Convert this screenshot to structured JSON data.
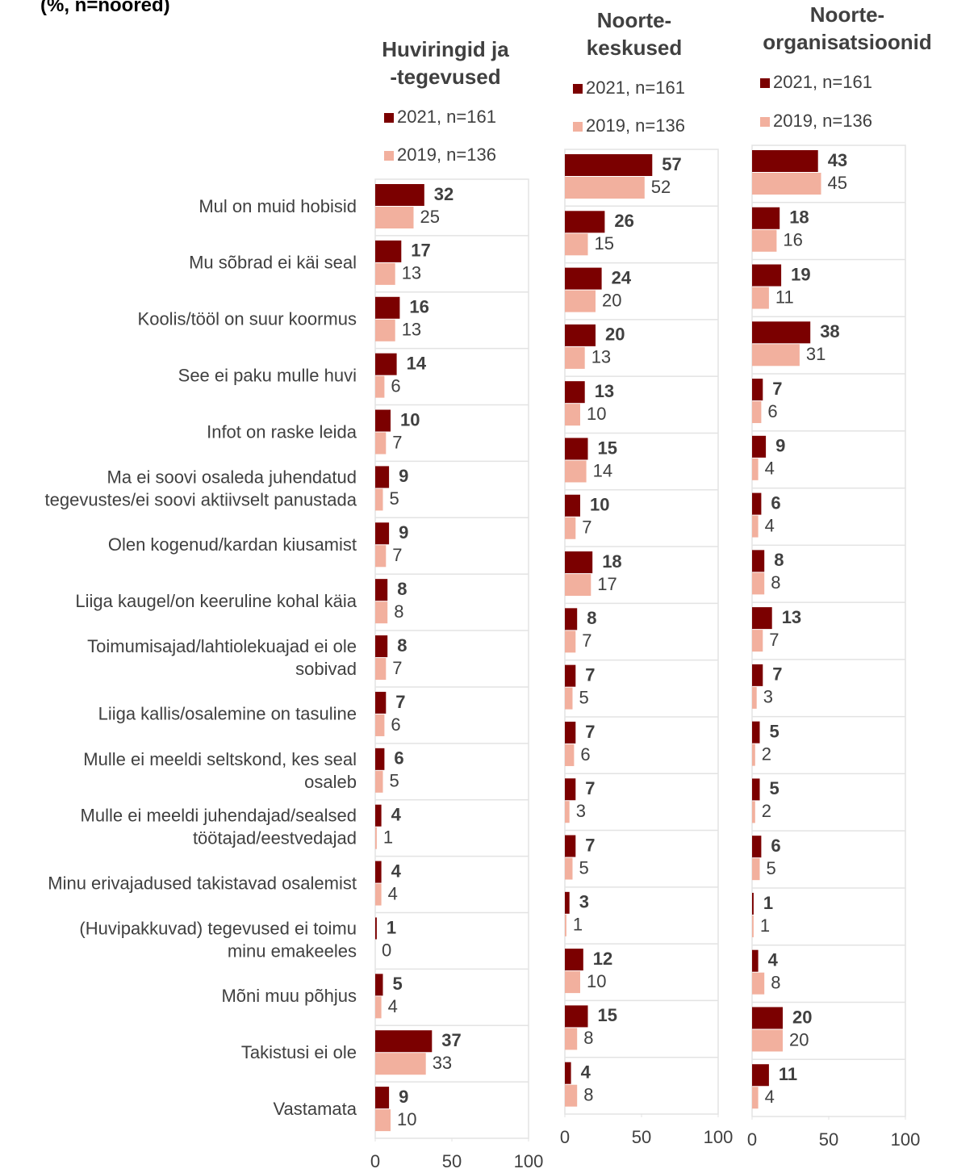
{
  "title": "(%, n=noored)",
  "chart_data": [
    {
      "type": "bar",
      "orientation": "horizontal",
      "title": "Huviringid ja\n-tegevused",
      "categories": [
        "Mul on muid hobisid",
        "Mu sõbrad ei käi seal",
        "Koolis/tööl on suur koormus",
        "See ei paku mulle huvi",
        "Infot on raske leida",
        "Ma ei soovi osaleda juhendatud\ntegevustes/ei soovi aktiivselt panustada",
        "Olen kogenud/kardan kiusamist",
        "Liiga kaugel/on keeruline kohal käia",
        "Toimumisajad/lahtiolekuajad ei ole\nsobivad",
        "Liiga kallis/osalemine on tasuline",
        "Mulle ei meeldi seltskond, kes seal\nosaleb",
        "Mulle ei meeldi juhendajad/sealsed\ntöötajad/eestvedajad",
        "Minu erivajadused takistavad osalemist",
        "(Huvipakkuvad) tegevused ei toimu\nminu emakeeles",
        "Mõni muu põhjus",
        "Takistusi ei ole",
        "Vastamata"
      ],
      "series": [
        {
          "name": "2021, n=161",
          "color": "#7b0000",
          "values": [
            32,
            17,
            16,
            14,
            10,
            9,
            9,
            8,
            8,
            7,
            6,
            4,
            4,
            1,
            5,
            37,
            9
          ]
        },
        {
          "name": "2019, n=136",
          "color": "#f2b09e",
          "values": [
            25,
            13,
            13,
            6,
            7,
            5,
            7,
            8,
            7,
            6,
            5,
            1,
            4,
            0,
            4,
            33,
            10
          ]
        }
      ],
      "xlim": [
        0,
        100
      ],
      "xticks": [
        0,
        50,
        100
      ]
    },
    {
      "type": "bar",
      "orientation": "horizontal",
      "title": "Noorte-\nkeskused",
      "series": [
        {
          "name": "2021, n=161",
          "color": "#7b0000",
          "values": [
            57,
            26,
            24,
            20,
            13,
            15,
            10,
            18,
            8,
            7,
            7,
            7,
            7,
            3,
            12,
            15,
            4
          ]
        },
        {
          "name": "2019, n=136",
          "color": "#f2b09e",
          "values": [
            52,
            15,
            20,
            13,
            10,
            14,
            7,
            17,
            7,
            5,
            6,
            3,
            5,
            1,
            10,
            8,
            8
          ]
        }
      ],
      "xlim": [
        0,
        100
      ],
      "xticks": [
        0,
        50,
        100
      ]
    },
    {
      "type": "bar",
      "orientation": "horizontal",
      "title": "Noorte-\norganisatsioonid",
      "series": [
        {
          "name": "2021, n=161",
          "color": "#7b0000",
          "values": [
            43,
            18,
            19,
            38,
            7,
            9,
            6,
            8,
            13,
            7,
            5,
            5,
            6,
            1,
            4,
            20,
            11
          ]
        },
        {
          "name": "2019, n=136",
          "color": "#f2b09e",
          "values": [
            45,
            16,
            11,
            31,
            6,
            4,
            4,
            8,
            7,
            3,
            2,
            2,
            5,
            1,
            8,
            20,
            4
          ]
        }
      ],
      "xlim": [
        0,
        100
      ],
      "xticks": [
        0,
        50,
        100
      ]
    }
  ]
}
